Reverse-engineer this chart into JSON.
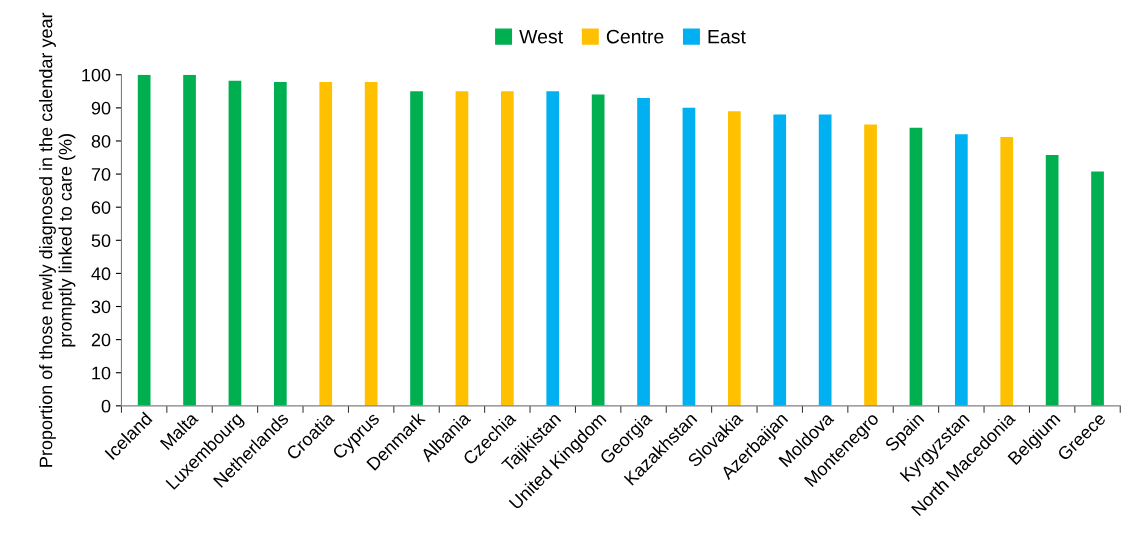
{
  "chart_data": {
    "type": "bar",
    "ylabel": "Proportion of those newly diagnosed in the calendar year promptly linked to care (%)",
    "categories": [
      "Iceland",
      "Malta",
      "Luxembourg",
      "Netherlands",
      "Croatia",
      "Cyprus",
      "Denmark",
      "Albania",
      "Czechia",
      "Tajikistan",
      "United Kingdom",
      "Georgia",
      "Kazakhstan",
      "Slovakia",
      "Azerbaijan",
      "Moldova",
      "Montenegro",
      "Spain",
      "Kyrgyzstan",
      "North Macedonia",
      "Belgium",
      "Greece"
    ],
    "series": [
      {
        "name": "West",
        "color": "#00b050",
        "values": [
          100,
          100,
          98.2,
          97.8,
          null,
          null,
          95,
          null,
          null,
          null,
          94,
          null,
          null,
          null,
          null,
          null,
          null,
          84,
          null,
          null,
          75.8,
          70.8
        ]
      },
      {
        "name": "Centre",
        "color": "#ffc000",
        "values": [
          null,
          null,
          null,
          null,
          97.8,
          97.8,
          null,
          95,
          95,
          null,
          null,
          null,
          null,
          89,
          null,
          null,
          85,
          null,
          null,
          81.2,
          null,
          null
        ]
      },
      {
        "name": "East",
        "color": "#00b0f0",
        "values": [
          null,
          null,
          null,
          null,
          null,
          null,
          null,
          null,
          null,
          95,
          null,
          93,
          90,
          null,
          88,
          88,
          null,
          null,
          82,
          null,
          null,
          null
        ]
      }
    ],
    "ylim": [
      0,
      100
    ],
    "yticks": [
      0,
      10,
      20,
      30,
      40,
      50,
      60,
      70,
      80,
      90,
      100
    ],
    "grid": false,
    "legend": "top"
  }
}
